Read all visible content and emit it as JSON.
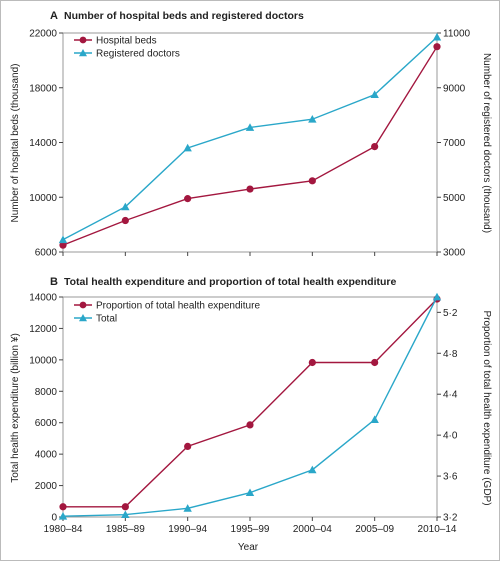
{
  "chart_data": [
    {
      "panel": "A",
      "type": "line",
      "title": "Number of hospital beds and registered doctors",
      "categories": [
        "1980–84",
        "1985–89",
        "1990–94",
        "1995–99",
        "2000–04",
        "2005–09",
        "2010–14"
      ],
      "ylabel_left": "Number of hospital beds (thousand)",
      "ylabel_right": "Number of registered doctors (thousand)",
      "ylim_left": [
        6000,
        22000
      ],
      "yticks_left": [
        "6000",
        "10000",
        "14000",
        "18000",
        "22000"
      ],
      "ylim_right": [
        3000,
        11000
      ],
      "yticks_right": [
        "3000",
        "5000",
        "7000",
        "9000",
        "11000"
      ],
      "legend_position": "top-left",
      "series": [
        {
          "name": "Hospital beds",
          "axis": "left",
          "marker": "circle",
          "color": "#a3173f",
          "values": [
            6500,
            8300,
            9900,
            10600,
            11200,
            13700,
            21000
          ]
        },
        {
          "name": "Registered doctors",
          "axis": "right",
          "marker": "triangle",
          "color": "#2aa7c9",
          "values": [
            3450,
            4650,
            6800,
            7550,
            7850,
            8750,
            10850
          ]
        }
      ]
    },
    {
      "panel": "B",
      "type": "line",
      "title": "Total health expenditure and proportion of total health expenditure",
      "categories": [
        "1980–84",
        "1985–89",
        "1990–94",
        "1995–99",
        "2000–04",
        "2005–09",
        "2010–14"
      ],
      "xlabel": "Year",
      "ylabel_left": "Total health expenditure (billion ¥)",
      "ylabel_right": "Proportion of total health expenditure (GDP)",
      "ylim_left": [
        0,
        14000
      ],
      "yticks_left": [
        "0",
        "2000",
        "4000",
        "6000",
        "8000",
        "10000",
        "12000",
        "14000"
      ],
      "ylim_right": [
        3.2,
        5.35
      ],
      "yticks_right": [
        "3·2",
        "3·6",
        "4·0",
        "4·4",
        "4·8",
        "5·2"
      ],
      "legend_position": "top-left",
      "series": [
        {
          "name": "Proportion of total health expenditure",
          "axis": "right",
          "marker": "circle",
          "color": "#a3173f",
          "values": [
            3.3,
            3.3,
            3.89,
            4.1,
            4.71,
            4.71,
            5.33
          ]
        },
        {
          "name": "Total",
          "axis": "left",
          "marker": "triangle",
          "color": "#2aa7c9",
          "values": [
            50,
            150,
            550,
            1550,
            3000,
            6200,
            14000
          ]
        }
      ]
    }
  ]
}
